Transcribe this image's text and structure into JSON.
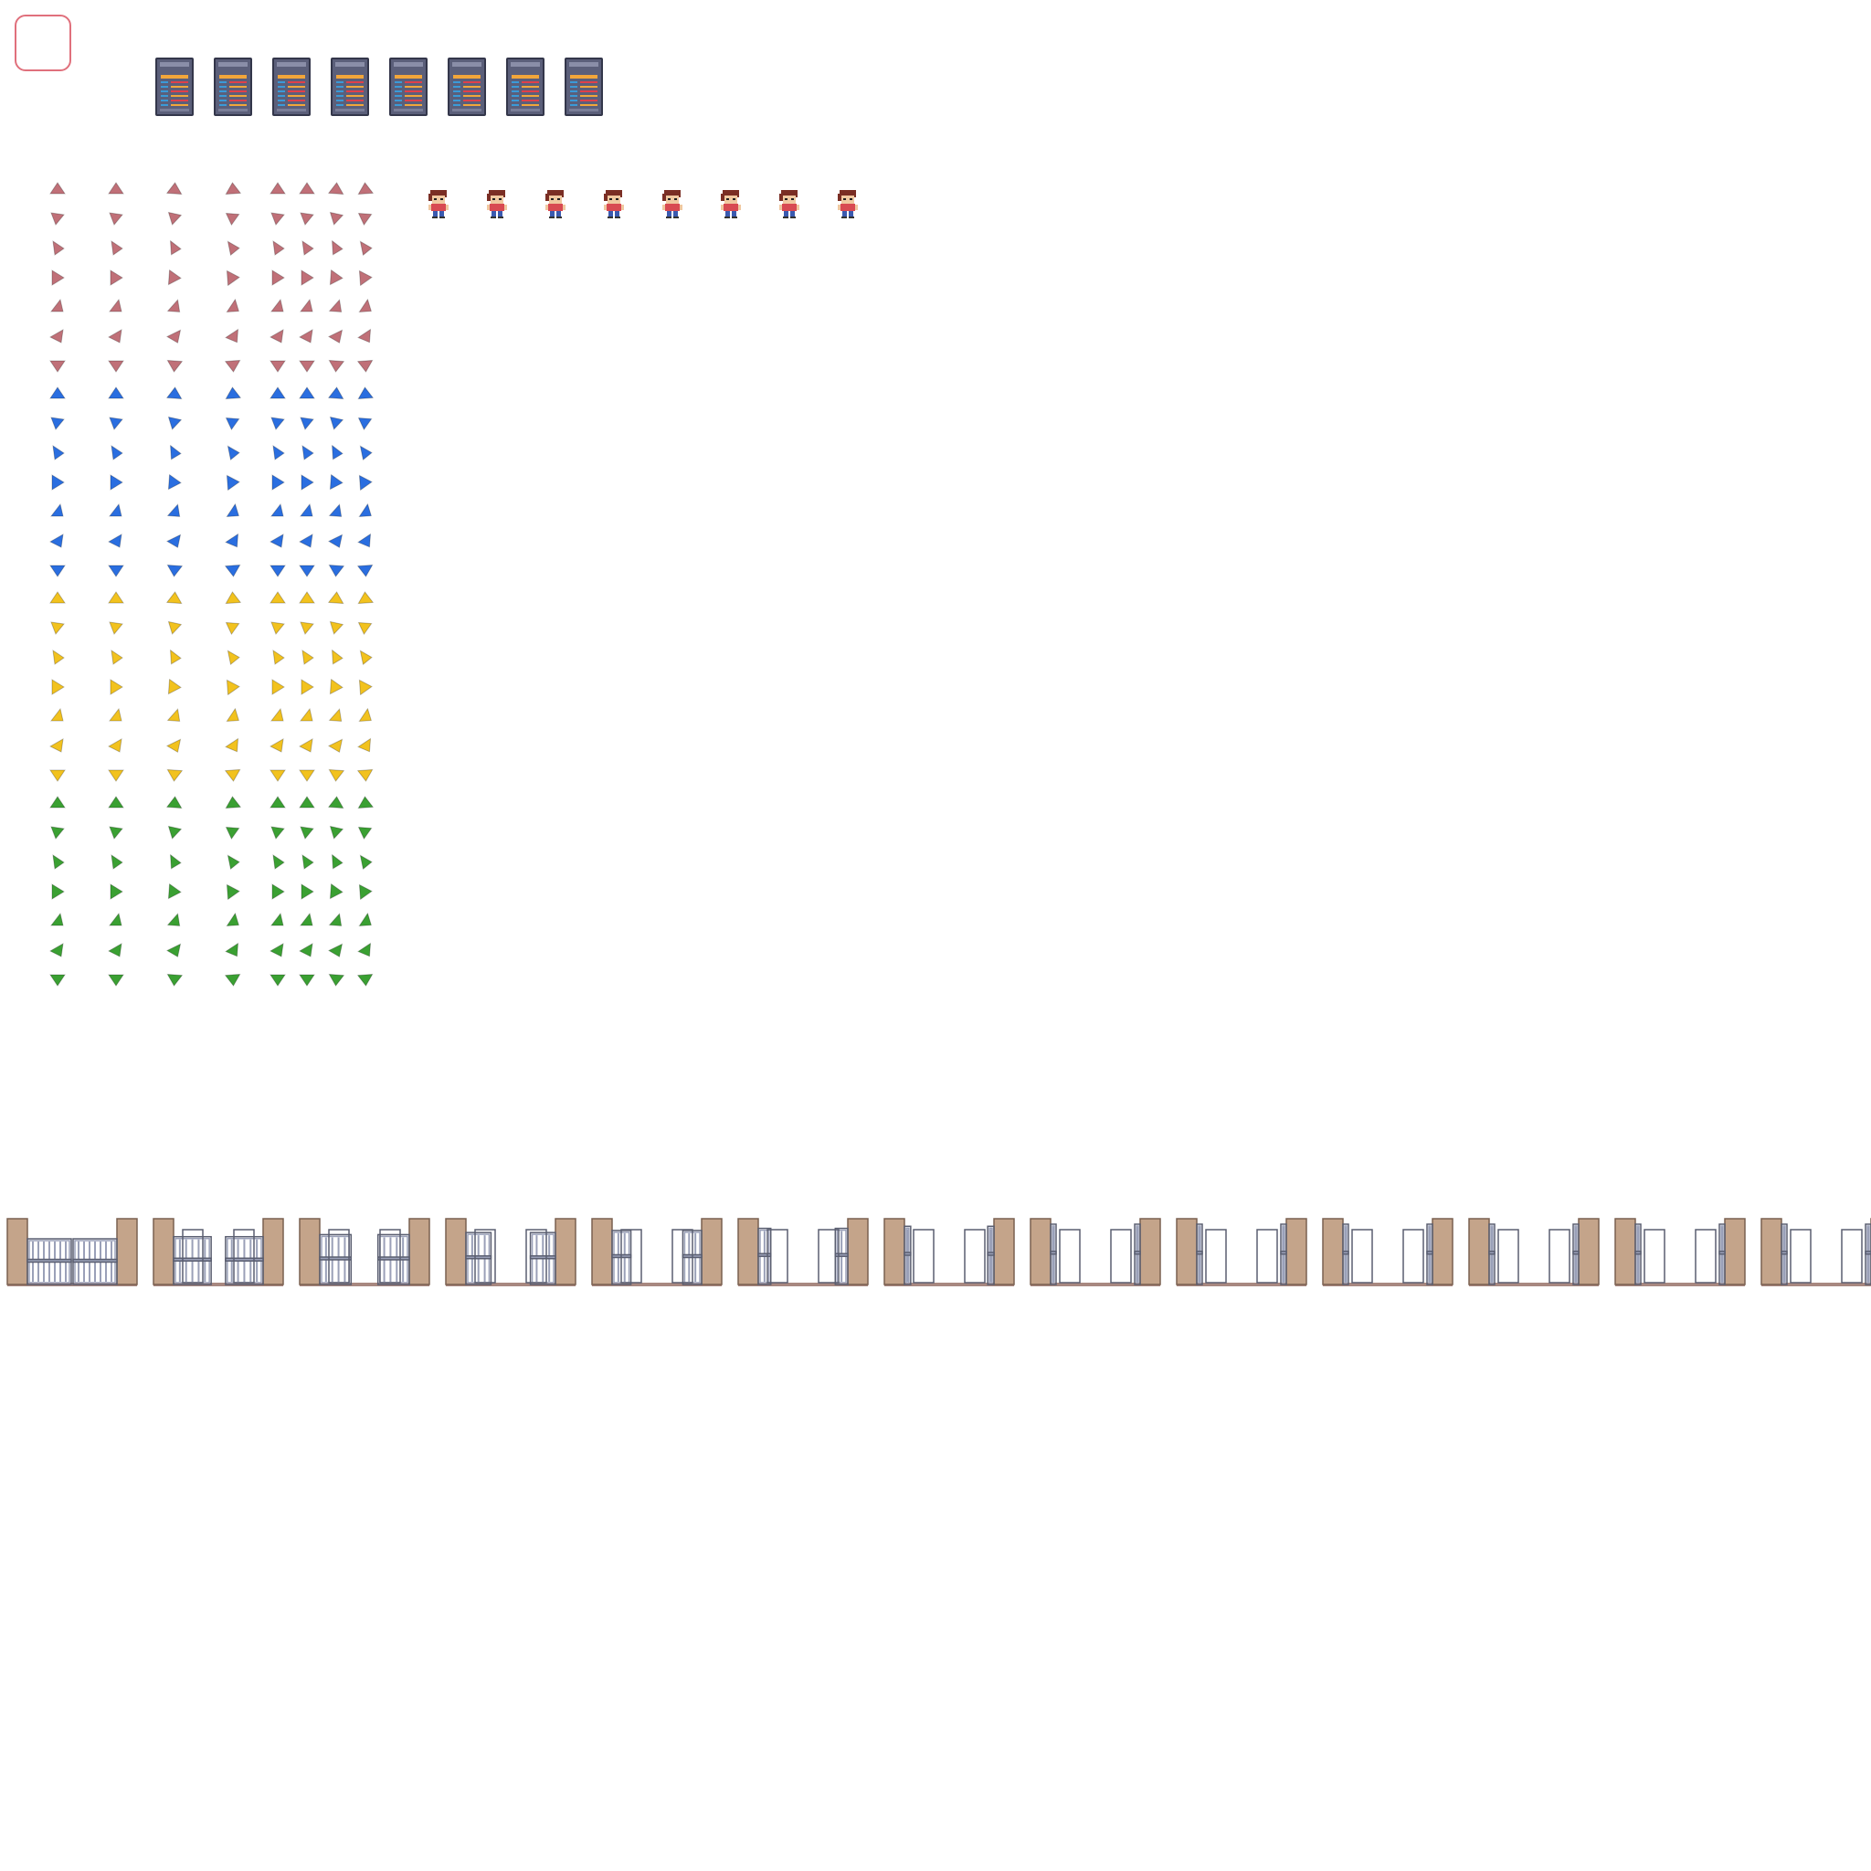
{
  "sprite_sheet": {
    "arrow_colors": {
      "red": "#c07078",
      "blue": "#2a6ee0",
      "yellow": "#f2c21e",
      "green": "#3aa032"
    },
    "arrow_color_order": [
      "red",
      "blue",
      "yellow",
      "green"
    ],
    "arrow_directions": [
      "up",
      "down-left",
      "down-right",
      "right",
      "up-left",
      "left",
      "down"
    ],
    "arrow_columns": 8,
    "panel_count": 8,
    "panel_colors": {
      "frame": "#5b5f7a",
      "accent": "#f2a63a",
      "line_red": "#e0404a",
      "line_blue": "#3a9ad8"
    },
    "character_count": 8,
    "character_colors": {
      "hair": "#7a2e24",
      "shirt": "#d84a52",
      "pants": "#3a5ab0",
      "skin": "#f0c8a0"
    },
    "gate_frame_count": 13,
    "gate_colors": {
      "post": "#c4a48a",
      "post_edge": "#7a6050",
      "bar": "#9aa0b8",
      "bar_edge": "#5a5e70",
      "ground": "#a88880"
    },
    "cursor_frame_color": "#e0707c",
    "icons": [
      "cursor-frame",
      "control-panel",
      "arrow-marker",
      "character",
      "gate"
    ]
  }
}
